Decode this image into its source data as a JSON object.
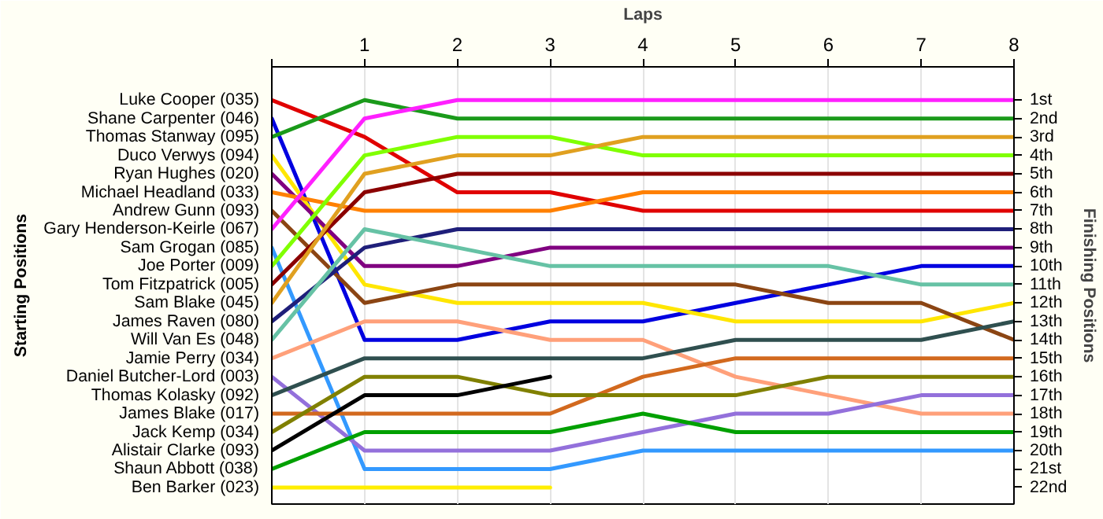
{
  "chart_data": {
    "type": "line",
    "xlabel": "Laps",
    "annotations": [
      "Starting Positions"
    ],
    "y2label": "Finishing Positions",
    "legend": "left",
    "x": [
      0,
      1,
      2,
      3,
      4,
      5,
      6,
      7,
      8
    ],
    "xlim": [
      0,
      8
    ],
    "xticks": [
      {
        "value": 0,
        "label": null
      },
      1,
      2,
      3,
      4,
      5,
      6,
      7,
      8
    ],
    "y2lim": [
      22.9,
      -0.8
    ],
    "y2ticks": [
      {
        "value": 1,
        "label": "1st"
      },
      {
        "value": 2,
        "label": "2nd"
      },
      {
        "value": 3,
        "label": "3rd"
      },
      {
        "value": 4,
        "label": "4th"
      },
      {
        "value": 5,
        "label": "5th"
      },
      {
        "value": 6,
        "label": "6th"
      },
      {
        "value": 7,
        "label": "7th"
      },
      {
        "value": 8,
        "label": "8th"
      },
      {
        "value": 9,
        "label": "9th"
      },
      {
        "value": 10,
        "label": "10th"
      },
      {
        "value": 11,
        "label": "11th"
      },
      {
        "value": 12,
        "label": "12th"
      },
      {
        "value": 13,
        "label": "13th"
      },
      {
        "value": 14,
        "label": "14th"
      },
      {
        "value": 15,
        "label": "15th"
      },
      {
        "value": 16,
        "label": "16th"
      },
      {
        "value": 17,
        "label": "17th"
      },
      {
        "value": 18,
        "label": "18th"
      },
      {
        "value": 19,
        "label": "19th"
      },
      {
        "value": 20,
        "label": "20th"
      },
      {
        "value": 21,
        "label": "21st"
      },
      {
        "value": 22,
        "label": "22nd"
      }
    ],
    "grid": true,
    "marker": "none",
    "line_style": "solid",
    "series": [
      {
        "name": "Luke Cooper (035)",
        "axis": "y2",
        "color": "#e00000",
        "values": [
          1,
          3,
          6,
          6,
          7,
          7,
          7,
          7,
          7
        ]
      },
      {
        "name": "Shane Carpenter (046)",
        "axis": "y2",
        "color": "#0000e0",
        "values": [
          2,
          14,
          14,
          13,
          13,
          12,
          11,
          10,
          10
        ]
      },
      {
        "name": "Thomas Stanway (095)",
        "axis": "y2",
        "color": "#1a9a1a",
        "values": [
          3,
          1,
          2,
          2,
          2,
          2,
          2,
          2,
          2
        ]
      },
      {
        "name": "Duco Verwys (094)",
        "axis": "y2",
        "color": "#ffe600",
        "values": [
          4,
          11,
          12,
          12,
          12,
          13,
          13,
          13,
          12
        ]
      },
      {
        "name": "Ryan Hughes (020)",
        "axis": "y2",
        "color": "#800080",
        "values": [
          5,
          10,
          10,
          9,
          9,
          9,
          9,
          9,
          9
        ]
      },
      {
        "name": "Michael Headland (033)",
        "axis": "y2",
        "color": "#ff8000",
        "values": [
          6,
          7,
          7,
          7,
          6,
          6,
          6,
          6,
          6
        ]
      },
      {
        "name": "Andrew Gunn (093)",
        "axis": "y2",
        "color": "#8b4513",
        "values": [
          7,
          12,
          11,
          11,
          11,
          11,
          12,
          12,
          14
        ]
      },
      {
        "name": "Gary Henderson-Keirle (067)",
        "axis": "y2",
        "color": "#ff20ff",
        "values": [
          8,
          2,
          1,
          1,
          1,
          1,
          1,
          1,
          1
        ]
      },
      {
        "name": "Sam Grogan (085)",
        "axis": "y2",
        "color": "#3399ff",
        "values": [
          9,
          21,
          21,
          21,
          20,
          20,
          20,
          20,
          20
        ]
      },
      {
        "name": "Joe Porter (009)",
        "axis": "y2",
        "color": "#80ff00",
        "values": [
          10,
          4,
          3,
          3,
          4,
          4,
          4,
          4,
          4
        ]
      },
      {
        "name": "Tom Fitzpatrick (005)",
        "axis": "y2",
        "color": "#8b0000",
        "values": [
          11,
          6,
          5,
          5,
          5,
          5,
          5,
          5,
          5
        ]
      },
      {
        "name": "Sam Blake (045)",
        "axis": "y2",
        "color": "#e0a020",
        "values": [
          12,
          5,
          4,
          4,
          3,
          3,
          3,
          3,
          3
        ]
      },
      {
        "name": "James Raven (080)",
        "axis": "y2",
        "color": "#1f1f7a",
        "values": [
          13,
          9,
          8,
          8,
          8,
          8,
          8,
          8,
          8
        ]
      },
      {
        "name": "Will Van Es (048)",
        "axis": "y2",
        "color": "#66c2a5",
        "values": [
          14,
          8,
          9,
          10,
          10,
          10,
          10,
          11,
          11
        ]
      },
      {
        "name": "Jamie Perry (034)",
        "axis": "y2",
        "color": "#ffa07a",
        "values": [
          15,
          13,
          13,
          14,
          14,
          16,
          17,
          18,
          18
        ]
      },
      {
        "name": "Daniel Butcher-Lord (003)",
        "axis": "y2",
        "color": "#9370db",
        "values": [
          16,
          20,
          20,
          20,
          19,
          18,
          18,
          17,
          17
        ]
      },
      {
        "name": "Thomas Kolasky (092)",
        "axis": "y2",
        "color": "#2f4f4f",
        "values": [
          17,
          15,
          15,
          15,
          15,
          14,
          14,
          14,
          13
        ]
      },
      {
        "name": "James Blake (017)",
        "axis": "y2",
        "color": "#d2691e",
        "values": [
          18,
          18,
          18,
          18,
          16,
          15,
          15,
          15,
          15
        ]
      },
      {
        "name": "Jack Kemp (034)",
        "axis": "y2",
        "color": "#808000",
        "values": [
          19,
          16,
          16,
          17,
          17,
          17,
          16,
          16,
          16
        ]
      },
      {
        "name": "Alistair Clarke (093)",
        "axis": "y2",
        "color": "#000000",
        "values": [
          20,
          17,
          17,
          16,
          null,
          null,
          null,
          null,
          null
        ]
      },
      {
        "name": "Shaun Abbott (038)",
        "axis": "y2",
        "color": "#00a000",
        "values": [
          21,
          19,
          19,
          19,
          18,
          19,
          19,
          19,
          19
        ]
      },
      {
        "name": "Ben Barker (023)",
        "axis": "y2",
        "color": "#ffee00",
        "values": [
          22,
          22,
          22,
          22,
          null,
          null,
          null,
          null,
          null
        ]
      }
    ]
  }
}
